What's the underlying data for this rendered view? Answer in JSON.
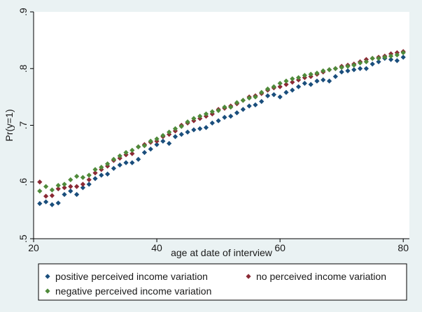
{
  "colors": {
    "background": "#eaf2f3",
    "plot_background": "#ffffff",
    "axis": "#000000",
    "positive": "#1a4e7c",
    "no": "#8b2a35",
    "negative": "#4f8a3a"
  },
  "chart_data": {
    "type": "scatter",
    "xlabel": "age at date of interview",
    "ylabel": "Pr(y=1)",
    "xlim": [
      20,
      81
    ],
    "ylim": [
      0.5,
      0.9
    ],
    "x_ticks": [
      20,
      40,
      60,
      80
    ],
    "x_tick_labels": [
      "20",
      "40",
      "60",
      "80"
    ],
    "y_ticks": [
      0.5,
      0.6,
      0.7,
      0.8,
      0.9
    ],
    "y_tick_labels": [
      ".5",
      ".6",
      ".7",
      ".8",
      ".9"
    ],
    "grid": false,
    "legend_placement": "bottom",
    "marker": "diamond",
    "x": [
      21,
      22,
      23,
      24,
      25,
      26,
      27,
      28,
      29,
      30,
      31,
      32,
      33,
      34,
      35,
      36,
      37,
      38,
      39,
      40,
      41,
      42,
      43,
      44,
      45,
      46,
      47,
      48,
      49,
      50,
      51,
      52,
      53,
      54,
      55,
      56,
      57,
      58,
      59,
      60,
      61,
      62,
      63,
      64,
      65,
      66,
      67,
      68,
      69,
      70,
      71,
      72,
      73,
      74,
      75,
      76,
      77,
      78,
      79,
      80
    ],
    "series": [
      {
        "name": "positive perceived income variation",
        "color": "#1a4e7c",
        "values": [
          0.562,
          0.565,
          0.56,
          0.563,
          0.578,
          0.584,
          0.578,
          0.59,
          0.596,
          0.606,
          0.612,
          0.614,
          0.624,
          0.63,
          0.634,
          0.634,
          0.64,
          0.652,
          0.658,
          0.666,
          0.672,
          0.668,
          0.68,
          0.684,
          0.688,
          0.692,
          0.694,
          0.696,
          0.704,
          0.708,
          0.714,
          0.716,
          0.722,
          0.728,
          0.734,
          0.736,
          0.742,
          0.752,
          0.754,
          0.75,
          0.758,
          0.762,
          0.768,
          0.774,
          0.772,
          0.778,
          0.78,
          0.778,
          0.786,
          0.794,
          0.796,
          0.798,
          0.8,
          0.8,
          0.808,
          0.812,
          0.818,
          0.816,
          0.814,
          0.82
        ]
      },
      {
        "name": "no perceived income variation",
        "color": "#8b2a35",
        "values": [
          0.6,
          0.575,
          0.576,
          0.588,
          0.59,
          0.592,
          0.592,
          0.596,
          0.604,
          0.616,
          0.622,
          0.628,
          0.638,
          0.642,
          0.648,
          0.65,
          0.662,
          0.666,
          0.67,
          0.672,
          0.68,
          0.684,
          0.69,
          0.7,
          0.704,
          0.708,
          0.712,
          0.716,
          0.72,
          0.728,
          0.73,
          0.734,
          0.738,
          0.744,
          0.75,
          0.752,
          0.756,
          0.762,
          0.766,
          0.768,
          0.772,
          0.776,
          0.78,
          0.784,
          0.786,
          0.79,
          0.794,
          0.798,
          0.8,
          0.804,
          0.806,
          0.808,
          0.812,
          0.816,
          0.818,
          0.82,
          0.822,
          0.826,
          0.828,
          0.83
        ]
      },
      {
        "name": "negative perceived income variation",
        "color": "#4f8a3a",
        "values": [
          0.584,
          0.592,
          0.586,
          0.594,
          0.596,
          0.604,
          0.61,
          0.608,
          0.612,
          0.622,
          0.626,
          0.632,
          0.64,
          0.646,
          0.652,
          0.656,
          0.662,
          0.664,
          0.672,
          0.676,
          0.682,
          0.688,
          0.694,
          0.698,
          0.706,
          0.712,
          0.716,
          0.72,
          0.724,
          0.726,
          0.732,
          0.732,
          0.74,
          0.744,
          0.748,
          0.75,
          0.758,
          0.764,
          0.768,
          0.774,
          0.778,
          0.782,
          0.784,
          0.788,
          0.79,
          0.792,
          0.796,
          0.798,
          0.8,
          0.802,
          0.804,
          0.806,
          0.81,
          0.812,
          0.818,
          0.818,
          0.82,
          0.822,
          0.824,
          0.828
        ]
      }
    ]
  }
}
